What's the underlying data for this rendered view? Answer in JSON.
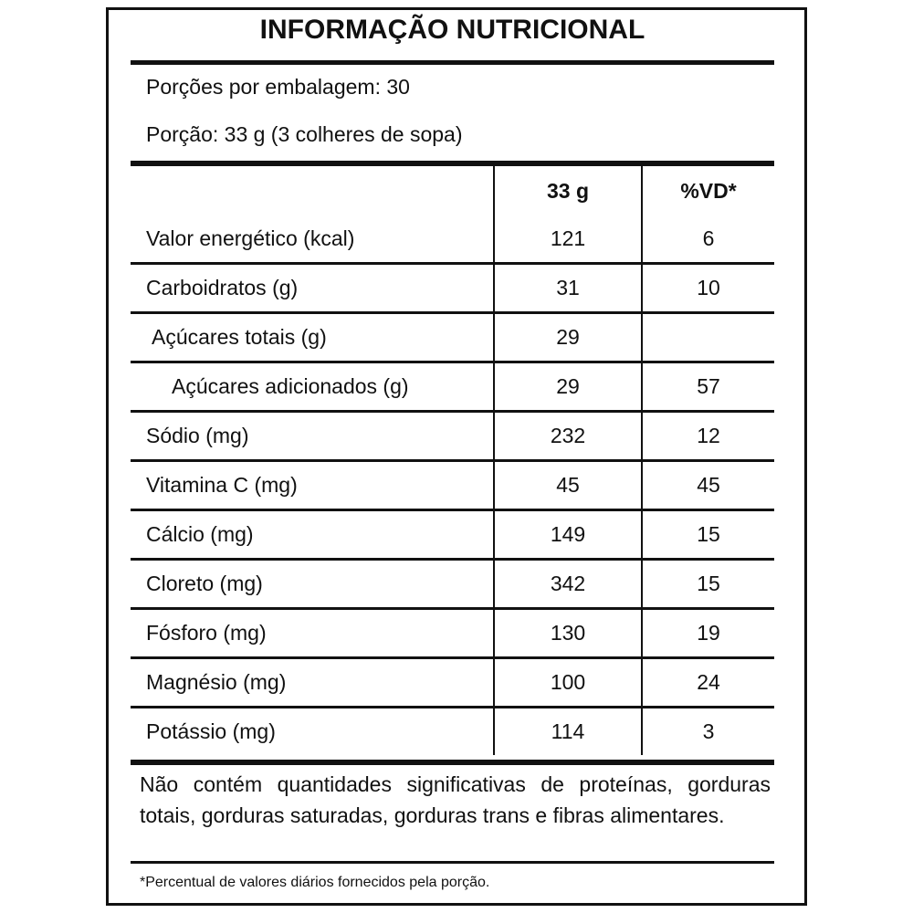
{
  "header": {
    "title": "INFORMAÇÃO NUTRICIONAL",
    "servings_per_package": "Porções por embalagem: 30",
    "serving_size": "Porção: 33 g (3 colheres de sopa)"
  },
  "table": {
    "columns": [
      "33 g",
      "%VD*"
    ],
    "rows": [
      {
        "label": "Valor energético (kcal)",
        "amount": 121,
        "vd": 6
      },
      {
        "label": "Carboidratos (g)",
        "amount": 31,
        "vd": 10
      },
      {
        "label": "Açúcares totais (g)",
        "amount": 29,
        "vd": null
      },
      {
        "label": "Açúcares adicionados (g)",
        "amount": 29,
        "vd": 57
      },
      {
        "label": "Sódio (mg)",
        "amount": 232,
        "vd": 12
      },
      {
        "label": "Vitamina C (mg)",
        "amount": 45,
        "vd": 45
      },
      {
        "label": "Cálcio (mg)",
        "amount": 149,
        "vd": 15
      },
      {
        "label": "Cloreto (mg)",
        "amount": 342,
        "vd": 15
      },
      {
        "label": "Fósforo (mg)",
        "amount": 130,
        "vd": 19
      },
      {
        "label": "Magnésio (mg)",
        "amount": 100,
        "vd": 24
      },
      {
        "label": "Potássio (mg)",
        "amount": 114,
        "vd": 3
      }
    ]
  },
  "footer": {
    "note": "Não contém quantidades significativas de proteínas, gorduras totais, gorduras saturadas, gorduras trans e fibras alimentares.",
    "footnote": "*Percentual de valores diários fornecidos pela porção."
  }
}
